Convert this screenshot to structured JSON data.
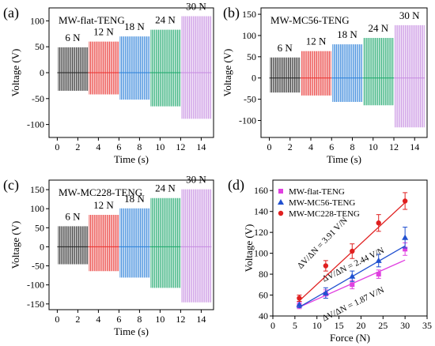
{
  "chart_data": [
    {
      "type": "line",
      "panel_label": "(a)",
      "title": "MW-flat-TENG",
      "xlabel": "Time (s)",
      "ylabel": "Voltage (V)",
      "xlim": [
        -0.8,
        15.2
      ],
      "ylim": [
        -125,
        125
      ],
      "xticks": [
        0,
        2,
        4,
        6,
        8,
        10,
        12,
        14
      ],
      "yticks": [
        -100,
        -50,
        0,
        50,
        100
      ],
      "segments": [
        {
          "force": "6 N",
          "x": [
            0,
            3
          ],
          "peak_max": 52,
          "peak_min": -38,
          "color": "#222222"
        },
        {
          "force": "12 N",
          "x": [
            3,
            6
          ],
          "peak_max": 63,
          "peak_min": -45,
          "color": "#e8302e"
        },
        {
          "force": "18 N",
          "x": [
            6,
            9
          ],
          "peak_max": 73,
          "peak_min": -55,
          "color": "#2a7fd8"
        },
        {
          "force": "24 N",
          "x": [
            9,
            12
          ],
          "peak_max": 86,
          "peak_min": -68,
          "color": "#1aa66a"
        },
        {
          "force": "30 N",
          "x": [
            12,
            15
          ],
          "peak_max": 112,
          "peak_min": -92,
          "color": "#c58be0"
        }
      ]
    },
    {
      "type": "line",
      "panel_label": "(b)",
      "title": "MW-MC56-TENG",
      "xlabel": "Time (s)",
      "ylabel": "Voltage (V)",
      "xlim": [
        -0.8,
        15.2
      ],
      "ylim": [
        -140,
        165
      ],
      "xticks": [
        0,
        2,
        4,
        6,
        8,
        10,
        12,
        14
      ],
      "yticks": [
        -100,
        -50,
        0,
        50,
        100,
        150
      ],
      "segments": [
        {
          "force": "6 N",
          "x": [
            0,
            3
          ],
          "peak_max": 52,
          "peak_min": -38,
          "color": "#222222"
        },
        {
          "force": "12 N",
          "x": [
            3,
            6
          ],
          "peak_max": 67,
          "peak_min": -45,
          "color": "#e8302e"
        },
        {
          "force": "18 N",
          "x": [
            6,
            9
          ],
          "peak_max": 83,
          "peak_min": -60,
          "color": "#2a7fd8"
        },
        {
          "force": "24 N",
          "x": [
            9,
            12
          ],
          "peak_max": 98,
          "peak_min": -68,
          "color": "#1aa66a"
        },
        {
          "force": "30 N",
          "x": [
            12,
            15
          ],
          "peak_max": 128,
          "peak_min": -120,
          "color": "#c58be0"
        }
      ]
    },
    {
      "type": "line",
      "panel_label": "(c)",
      "title": "MW-MC228-TENG",
      "xlabel": "Time (s)",
      "ylabel": "Voltage (V)",
      "xlim": [
        -0.8,
        15.2
      ],
      "ylim": [
        -165,
        175
      ],
      "xticks": [
        0,
        2,
        4,
        6,
        8,
        10,
        12,
        14
      ],
      "yticks": [
        -150,
        -100,
        -50,
        0,
        50,
        100,
        150
      ],
      "segments": [
        {
          "force": "6 N",
          "x": [
            0,
            3
          ],
          "peak_max": 58,
          "peak_min": -50,
          "color": "#222222"
        },
        {
          "force": "12 N",
          "x": [
            3,
            6
          ],
          "peak_max": 88,
          "peak_min": -68,
          "color": "#e8302e"
        },
        {
          "force": "18 N",
          "x": [
            6,
            9
          ],
          "peak_max": 105,
          "peak_min": -85,
          "color": "#2a7fd8"
        },
        {
          "force": "24 N",
          "x": [
            9,
            12
          ],
          "peak_max": 132,
          "peak_min": -112,
          "color": "#1aa66a"
        },
        {
          "force": "30 N",
          "x": [
            12,
            15
          ],
          "peak_max": 155,
          "peak_min": -150,
          "color": "#c58be0"
        }
      ]
    },
    {
      "type": "scatter",
      "panel_label": "(d)",
      "xlabel": "Force (N)",
      "ylabel": "Voltage (V)",
      "xlim": [
        0,
        35
      ],
      "ylim": [
        40,
        170
      ],
      "xticks": [
        0,
        5,
        10,
        15,
        20,
        25,
        30,
        35
      ],
      "yticks": [
        40,
        60,
        80,
        100,
        120,
        140,
        160
      ],
      "legend_position": "top-left",
      "series": [
        {
          "name": "MW-flat-TENG",
          "color": "#e040e0",
          "marker": "square",
          "x": [
            6,
            12,
            18,
            24,
            30
          ],
          "y": [
            50,
            61,
            70,
            80,
            104
          ],
          "err": [
            3,
            4,
            4,
            4,
            6
          ],
          "fit": [
            [
              6,
              48.5
            ],
            [
              30,
              93.5
            ]
          ],
          "slope_label": "ΔV/ΔN = 1.87 V/N"
        },
        {
          "name": "MW-MC56-TENG",
          "color": "#2050d0",
          "marker": "triangle",
          "x": [
            6,
            12,
            18,
            24,
            30
          ],
          "y": [
            51,
            62,
            78,
            93,
            115
          ],
          "err": [
            3,
            5,
            5,
            6,
            10
          ],
          "fit": [
            [
              6,
              48.5
            ],
            [
              30,
              107
            ]
          ],
          "slope_label": "ΔV/ΔN = 2.44 V/N"
        },
        {
          "name": "MW-MC228-TENG",
          "color": "#e02020",
          "marker": "circle",
          "x": [
            6,
            12,
            18,
            24,
            30
          ],
          "y": [
            57,
            88,
            102,
            129,
            150
          ],
          "err": [
            3,
            5,
            7,
            8,
            8
          ],
          "fit": [
            [
              6,
              54.5
            ],
            [
              30,
              148.5
            ]
          ],
          "slope_label": "ΔV/ΔN = 3.91 V/N"
        }
      ]
    }
  ]
}
